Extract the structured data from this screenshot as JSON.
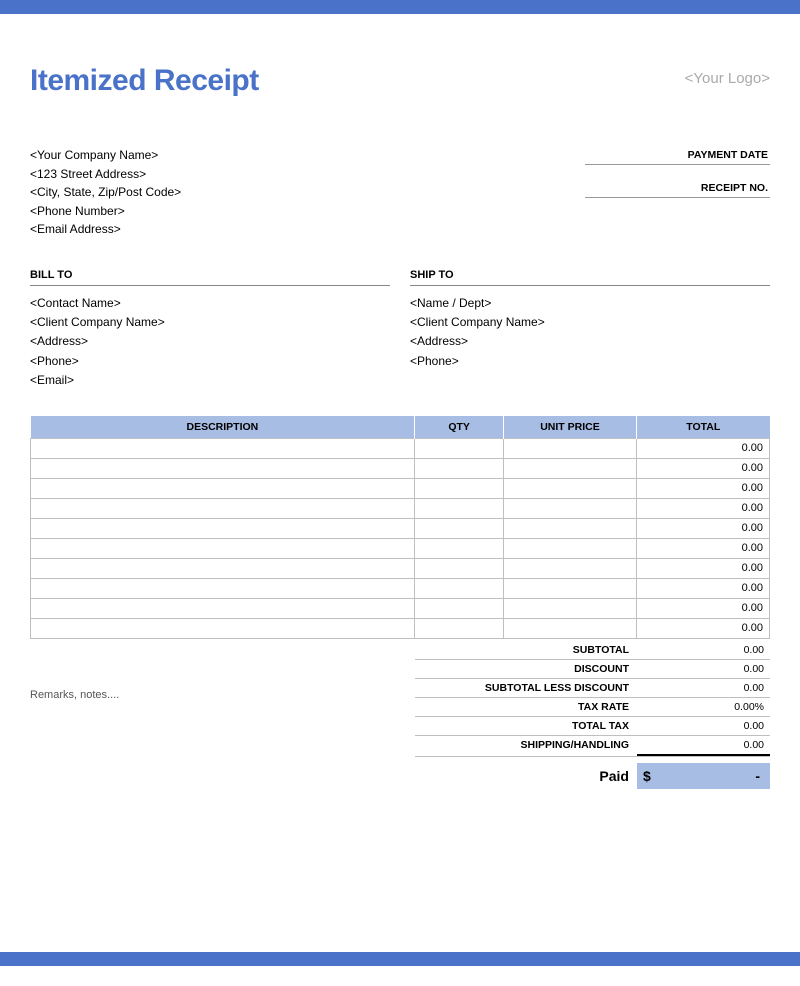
{
  "colors": {
    "accent": "#4a72c8",
    "header_band": "#a8bde4",
    "border": "#bfbfbf",
    "placeholder": "#aaaaaa"
  },
  "title": "Itemized Receipt",
  "logo_placeholder": "<Your Logo>",
  "company": {
    "name": "<Your Company Name>",
    "street": "<123 Street Address>",
    "city": "<City, State, Zip/Post Code>",
    "phone": "<Phone Number>",
    "email": "<Email Address>"
  },
  "meta": {
    "payment_date_label": "PAYMENT DATE",
    "receipt_no_label": "RECEIPT NO."
  },
  "bill_to": {
    "label": "BILL TO",
    "contact": "<Contact Name>",
    "company": "<Client Company Name>",
    "address": "<Address>",
    "phone": "<Phone>",
    "email": "<Email>"
  },
  "ship_to": {
    "label": "SHIP TO",
    "contact": "<Name / Dept>",
    "company": "<Client Company Name>",
    "address": "<Address>",
    "phone": "<Phone>"
  },
  "table": {
    "columns": {
      "description": "DESCRIPTION",
      "qty": "QTY",
      "unit_price": "UNIT PRICE",
      "total": "TOTAL"
    },
    "rows": [
      {
        "description": "",
        "qty": "",
        "unit_price": "",
        "total": "0.00"
      },
      {
        "description": "",
        "qty": "",
        "unit_price": "",
        "total": "0.00"
      },
      {
        "description": "",
        "qty": "",
        "unit_price": "",
        "total": "0.00"
      },
      {
        "description": "",
        "qty": "",
        "unit_price": "",
        "total": "0.00"
      },
      {
        "description": "",
        "qty": "",
        "unit_price": "",
        "total": "0.00"
      },
      {
        "description": "",
        "qty": "",
        "unit_price": "",
        "total": "0.00"
      },
      {
        "description": "",
        "qty": "",
        "unit_price": "",
        "total": "0.00"
      },
      {
        "description": "",
        "qty": "",
        "unit_price": "",
        "total": "0.00"
      },
      {
        "description": "",
        "qty": "",
        "unit_price": "",
        "total": "0.00"
      },
      {
        "description": "",
        "qty": "",
        "unit_price": "",
        "total": "0.00"
      }
    ]
  },
  "remarks": "Remarks, notes....",
  "summary": {
    "subtotal": {
      "label": "SUBTOTAL",
      "value": "0.00"
    },
    "discount": {
      "label": "DISCOUNT",
      "value": "0.00"
    },
    "subtotal_less_discount": {
      "label": "SUBTOTAL LESS DISCOUNT",
      "value": "0.00"
    },
    "tax_rate": {
      "label": "TAX RATE",
      "value": "0.00%"
    },
    "total_tax": {
      "label": "TOTAL TAX",
      "value": "0.00"
    },
    "shipping": {
      "label": "SHIPPING/HANDLING",
      "value": "0.00"
    }
  },
  "paid": {
    "label": "Paid",
    "currency": "$",
    "value": "-"
  }
}
